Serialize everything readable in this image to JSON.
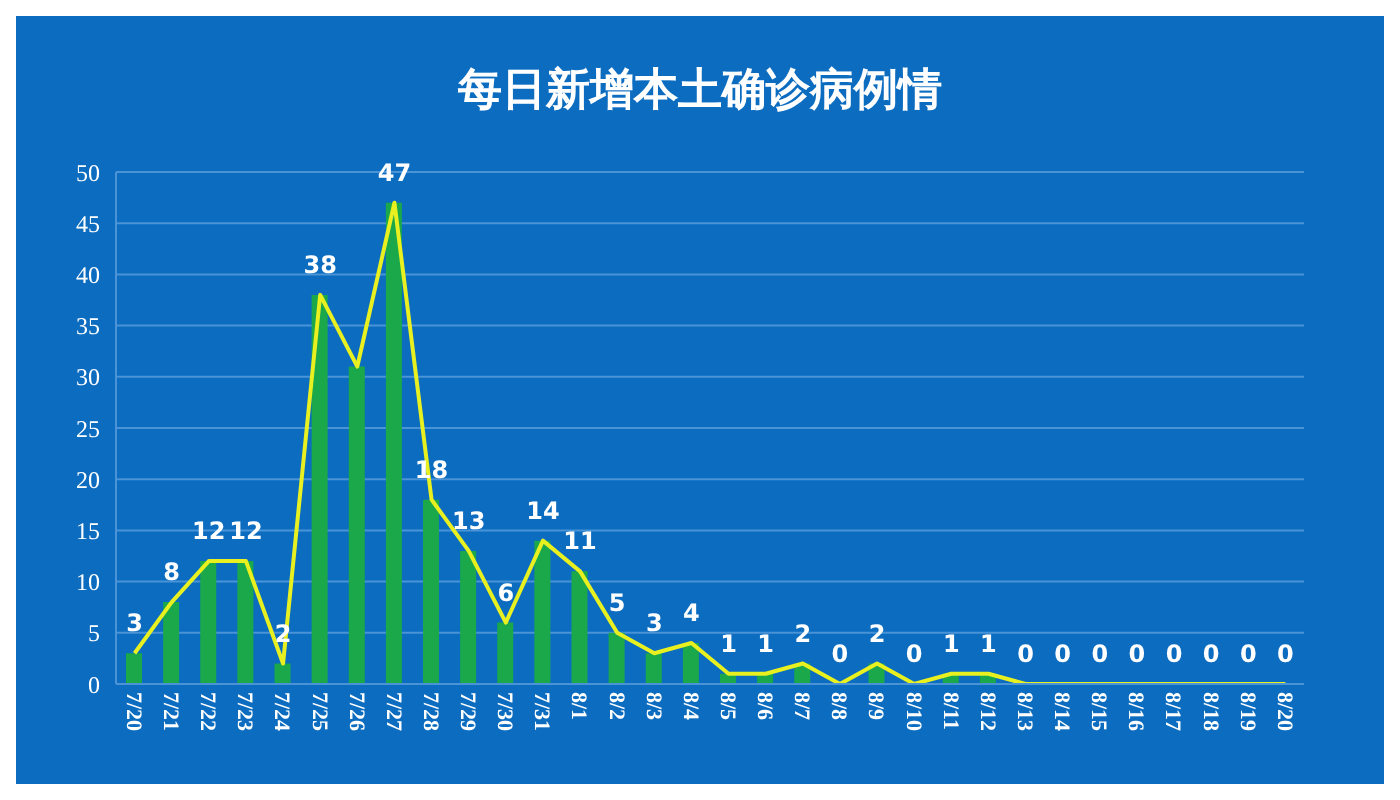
{
  "chart_data": {
    "type": "bar",
    "title": "每日新增本土确诊病例情",
    "categories": [
      "7/20",
      "7/21",
      "7/22",
      "7/23",
      "7/24",
      "7/25",
      "7/26",
      "7/27",
      "7/28",
      "7/29",
      "7/30",
      "7/31",
      "8/1",
      "8/2",
      "8/3",
      "8/4",
      "8/5",
      "8/6",
      "8/7",
      "8/8",
      "8/9",
      "8/10",
      "8/11",
      "8/12",
      "8/13",
      "8/14",
      "8/15",
      "8/16",
      "8/17",
      "8/18",
      "8/19",
      "8/20"
    ],
    "series": [
      {
        "color": "#1aa84a",
        "values": [
          3,
          8,
          12,
          12,
          2,
          38,
          31,
          47,
          18,
          13,
          6,
          14,
          11,
          5,
          3,
          4,
          1,
          1,
          2,
          0,
          2,
          0,
          1,
          1,
          0,
          0,
          0,
          0,
          0,
          0,
          0,
          0
        ]
      },
      {
        "type": "line",
        "color": "#e8f020",
        "values": [
          3,
          8,
          12,
          12,
          2,
          38,
          31,
          47,
          18,
          13,
          6,
          14,
          11,
          5,
          3,
          4,
          1,
          1,
          2,
          0,
          2,
          0,
          1,
          1,
          0,
          0,
          0,
          0,
          0,
          0,
          0,
          0
        ],
        "value_labels": [
          "3",
          "8",
          "12",
          "12",
          "2",
          "38",
          null,
          "47",
          "18",
          "13",
          "6",
          "14",
          "11",
          "5",
          "3",
          "4",
          "1",
          "1",
          "2",
          "0",
          "2",
          "0",
          "1",
          "1",
          "0",
          "0",
          "0",
          "0",
          "0",
          "0",
          "0",
          "0"
        ]
      }
    ],
    "ylim": [
      0,
      50
    ],
    "yticks": [
      0,
      5,
      10,
      15,
      20,
      25,
      30,
      35,
      40,
      45,
      50
    ],
    "grid": "y",
    "marker": "none",
    "line_style": "solid"
  }
}
